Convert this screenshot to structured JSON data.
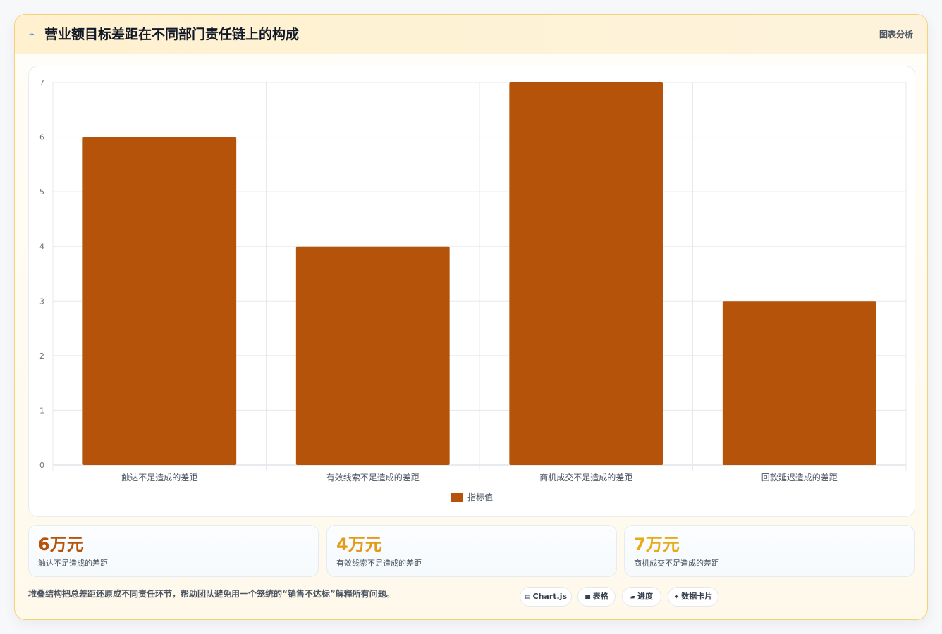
{
  "header": {
    "icon": "trend-line-icon",
    "title": "营业额目标差距在不同部门责任链上的构成",
    "action_label": "图表分析"
  },
  "colors": {
    "bar": "#b45309",
    "stat_1": "#b45309",
    "stat_2": "#e39a17",
    "stat_3": "#e8aa15"
  },
  "chart_data": {
    "type": "bar",
    "categories": [
      "触达不足造成的差距",
      "有效线索不足造成的差距",
      "商机成交不足造成的差距",
      "回款延迟造成的差距"
    ],
    "series": [
      {
        "name": "指标值",
        "values": [
          6,
          4,
          7,
          3
        ]
      }
    ],
    "ylim": [
      0,
      7
    ],
    "yticks": [
      0,
      1,
      2,
      3,
      4,
      5,
      6,
      7
    ],
    "grid": true,
    "legend": "bottom-center"
  },
  "stats": [
    {
      "value": "6万元",
      "label": "触达不足造成的差距"
    },
    {
      "value": "4万元",
      "label": "有效线索不足造成的差距"
    },
    {
      "value": "7万元",
      "label": "商机成交不足造成的差距"
    }
  ],
  "footer": {
    "note": "堆叠结构把总差距还原成不同责任环节，帮助团队避免用一个笼统的“销售不达标”解释所有问题。",
    "chips": [
      {
        "icon": "chart-icon",
        "label": "Chart.js"
      },
      {
        "icon": "table-icon",
        "label": "表格"
      },
      {
        "icon": "progress-icon",
        "label": "进度"
      },
      {
        "icon": "sparkle-icon",
        "label": "数据卡片"
      }
    ]
  }
}
